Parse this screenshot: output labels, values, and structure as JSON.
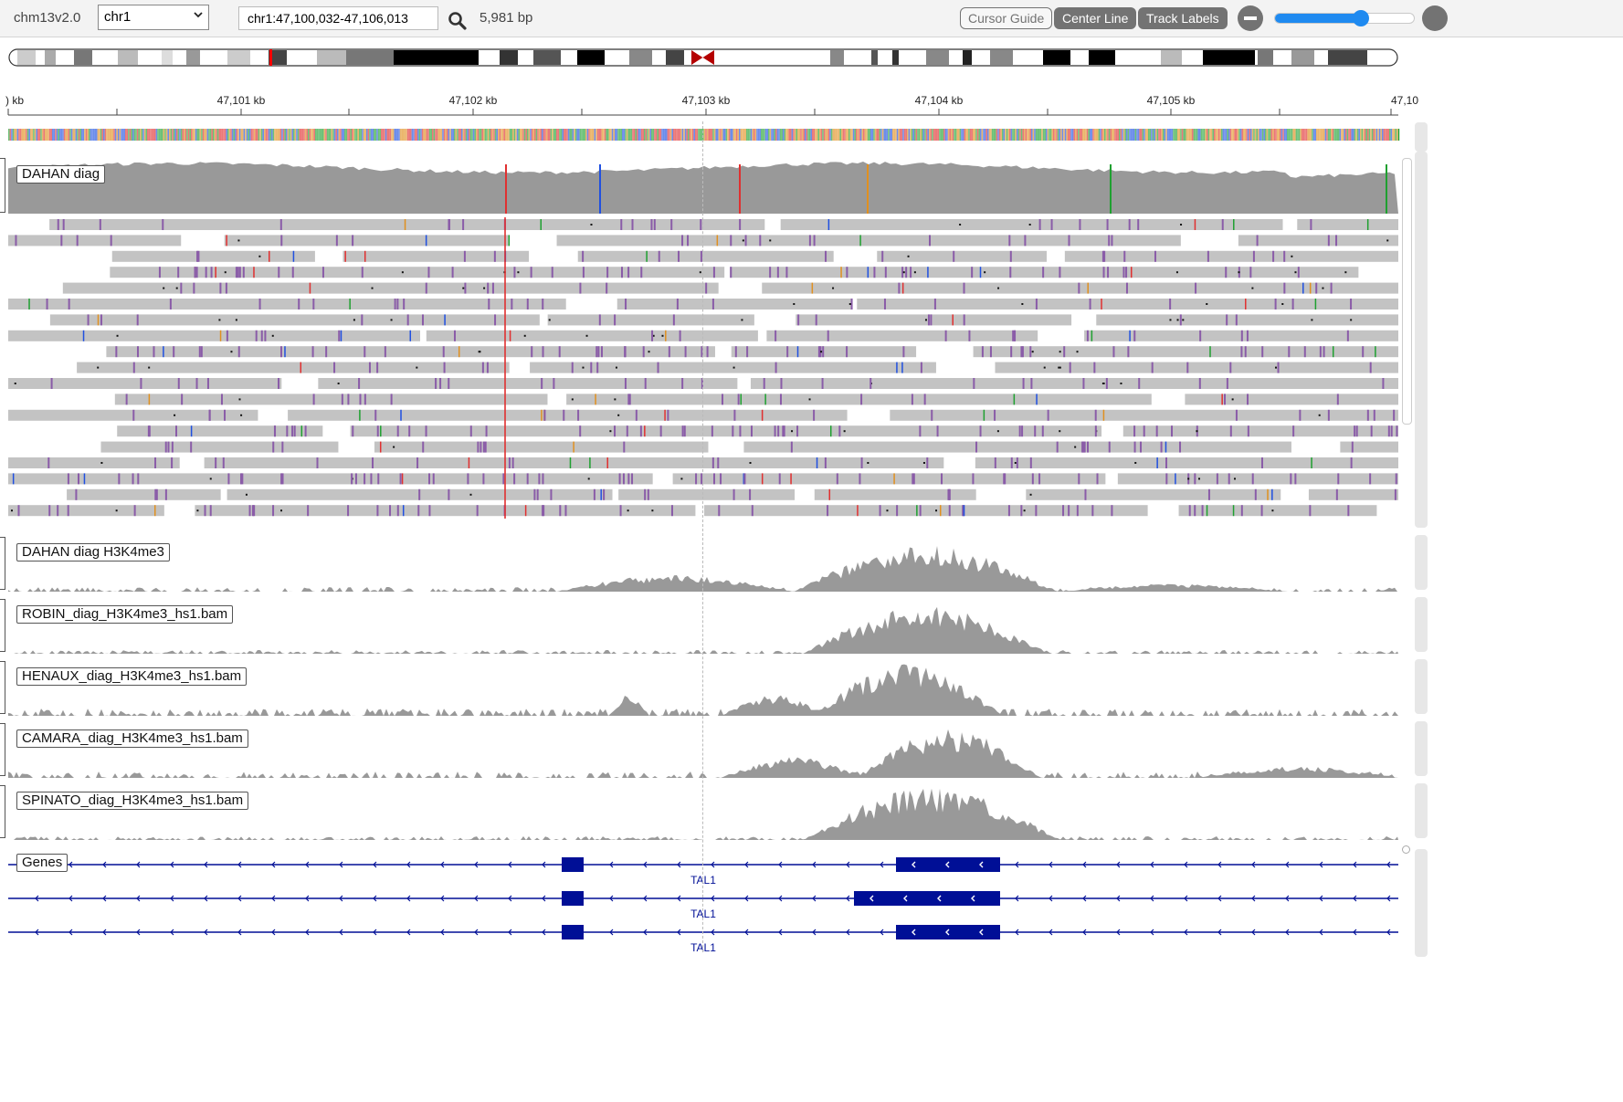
{
  "navbar": {
    "genome": "chm13v2.0",
    "chromosome": "chr1",
    "locus": "chr1:47,100,032-47,106,013",
    "width_bp": "5,981 bp",
    "buttons": {
      "cursor_guide": "Cursor Guide",
      "center_line": "Center Line",
      "track_labels": "Track Labels"
    },
    "zoom_level": 0.62
  },
  "ruler": {
    "tick_labels": [
      ") kb",
      "47,101 kb",
      "47,102 kb",
      "47,103 kb",
      "47,104 kb",
      "47,105 kb",
      "47,10"
    ]
  },
  "tracks": {
    "alignment": {
      "label": "DAHAN diag"
    },
    "coverage": [
      {
        "label": "DAHAN diag H3K4me3"
      },
      {
        "label": "ROBIN_diag_H3K4me3_hs1.bam"
      },
      {
        "label": "HENAUX_diag_H3K4me3_hs1.bam"
      },
      {
        "label": "CAMARA_diag_H3K4me3_hs1.bam"
      },
      {
        "label": "SPINATO_diag_H3K4me3_hs1.bam"
      }
    ],
    "genes": {
      "label": "Genes",
      "transcripts": [
        {
          "name": "TAL1"
        },
        {
          "name": "TAL1"
        },
        {
          "name": "TAL1"
        }
      ]
    }
  },
  "colors": {
    "coverage": "#999999",
    "read": "#c3c3c3",
    "insertion": "#8a5ca8",
    "gene": "#000f96",
    "button_dark": "#737373"
  }
}
